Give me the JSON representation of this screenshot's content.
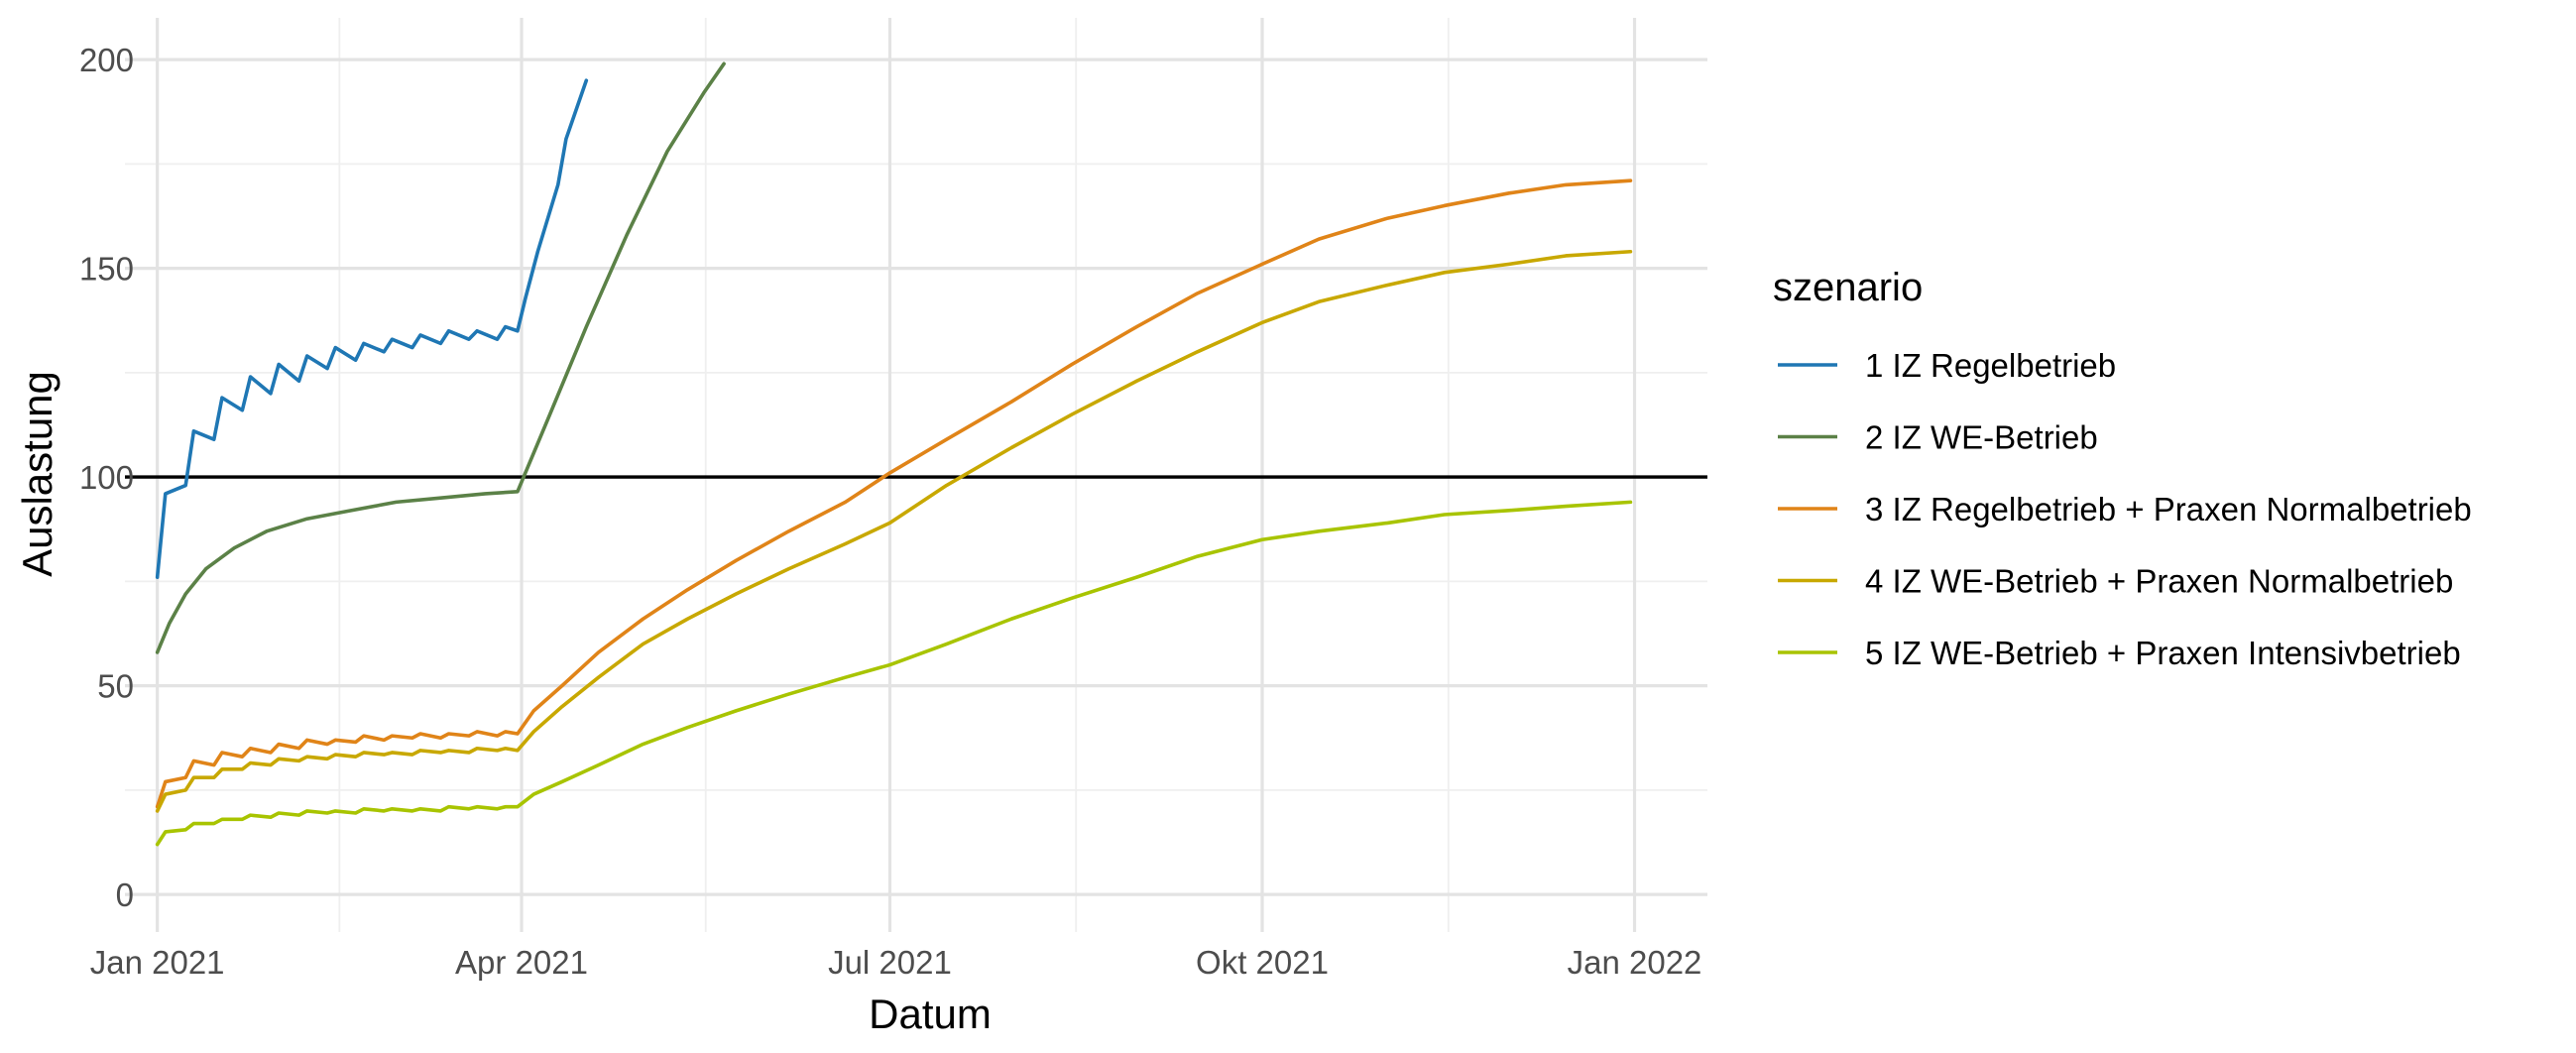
{
  "chart_data": {
    "type": "line",
    "xlabel": "Datum",
    "ylabel": "Auslastung",
    "x_ticks": [
      {
        "date": "2021-01-01",
        "label": "Jan 2021"
      },
      {
        "date": "2021-04-01",
        "label": "Apr 2021"
      },
      {
        "date": "2021-07-01",
        "label": "Jul 2021"
      },
      {
        "date": "2021-10-01",
        "label": "Okt 2021"
      },
      {
        "date": "2022-01-01",
        "label": "Jan 2022"
      }
    ],
    "y_ticks": [
      0,
      50,
      100,
      150,
      200
    ],
    "xlim": [
      "2020-12-24",
      "2022-01-19"
    ],
    "ylim": [
      -9,
      210
    ],
    "grid": true,
    "reference_line": {
      "y": 100,
      "color": "#000000"
    },
    "legend": {
      "title": "szenario",
      "position": "right"
    },
    "series": [
      {
        "name": "1 IZ Regelbetrieb",
        "color": "#1f77b4",
        "points": [
          [
            "2021-01-01",
            76
          ],
          [
            "2021-01-03",
            96
          ],
          [
            "2021-01-08",
            98
          ],
          [
            "2021-01-10",
            111
          ],
          [
            "2021-01-15",
            109
          ],
          [
            "2021-01-17",
            119
          ],
          [
            "2021-01-22",
            116
          ],
          [
            "2021-01-24",
            124
          ],
          [
            "2021-01-29",
            120
          ],
          [
            "2021-01-31",
            127
          ],
          [
            "2021-02-05",
            123
          ],
          [
            "2021-02-07",
            129
          ],
          [
            "2021-02-12",
            126
          ],
          [
            "2021-02-14",
            131
          ],
          [
            "2021-02-19",
            128
          ],
          [
            "2021-02-21",
            132
          ],
          [
            "2021-02-26",
            130
          ],
          [
            "2021-02-28",
            133
          ],
          [
            "2021-03-05",
            131
          ],
          [
            "2021-03-07",
            134
          ],
          [
            "2021-03-12",
            132
          ],
          [
            "2021-03-14",
            135
          ],
          [
            "2021-03-19",
            133
          ],
          [
            "2021-03-21",
            135
          ],
          [
            "2021-03-26",
            133
          ],
          [
            "2021-03-28",
            136
          ],
          [
            "2021-03-31",
            135
          ],
          [
            "2021-04-02",
            143
          ],
          [
            "2021-04-05",
            154
          ],
          [
            "2021-04-10",
            170
          ],
          [
            "2021-04-12",
            181
          ],
          [
            "2021-04-17",
            195
          ]
        ]
      },
      {
        "name": "2 IZ WE-Betrieb",
        "color": "#5b8147",
        "points": [
          [
            "2021-01-01",
            58
          ],
          [
            "2021-01-04",
            65
          ],
          [
            "2021-01-08",
            72
          ],
          [
            "2021-01-13",
            78
          ],
          [
            "2021-01-20",
            83
          ],
          [
            "2021-01-28",
            87
          ],
          [
            "2021-02-07",
            90
          ],
          [
            "2021-02-18",
            92
          ],
          [
            "2021-03-01",
            94
          ],
          [
            "2021-03-12",
            95
          ],
          [
            "2021-03-23",
            96
          ],
          [
            "2021-03-31",
            96.5
          ],
          [
            "2021-04-08",
            115
          ],
          [
            "2021-04-17",
            136
          ],
          [
            "2021-04-27",
            158
          ],
          [
            "2021-05-07",
            178
          ],
          [
            "2021-05-16",
            192
          ],
          [
            "2021-05-21",
            199
          ]
        ]
      },
      {
        "name": "3 IZ Regelbetrieb + Praxen Normalbetrieb",
        "color": "#e08418",
        "points": [
          [
            "2021-01-01",
            21
          ],
          [
            "2021-01-03",
            27
          ],
          [
            "2021-01-08",
            28
          ],
          [
            "2021-01-10",
            32
          ],
          [
            "2021-01-15",
            31
          ],
          [
            "2021-01-17",
            34
          ],
          [
            "2021-01-22",
            33
          ],
          [
            "2021-01-24",
            35
          ],
          [
            "2021-01-29",
            34
          ],
          [
            "2021-01-31",
            36
          ],
          [
            "2021-02-05",
            35
          ],
          [
            "2021-02-07",
            37
          ],
          [
            "2021-02-12",
            36
          ],
          [
            "2021-02-14",
            37
          ],
          [
            "2021-02-19",
            36.5
          ],
          [
            "2021-02-21",
            38
          ],
          [
            "2021-02-26",
            37
          ],
          [
            "2021-02-28",
            38
          ],
          [
            "2021-03-05",
            37.5
          ],
          [
            "2021-03-07",
            38.5
          ],
          [
            "2021-03-12",
            37.5
          ],
          [
            "2021-03-14",
            38.5
          ],
          [
            "2021-03-19",
            38
          ],
          [
            "2021-03-21",
            39
          ],
          [
            "2021-03-26",
            38
          ],
          [
            "2021-03-28",
            39
          ],
          [
            "2021-03-31",
            38.5
          ],
          [
            "2021-04-04",
            44
          ],
          [
            "2021-04-11",
            50
          ],
          [
            "2021-04-20",
            58
          ],
          [
            "2021-05-01",
            66
          ],
          [
            "2021-05-12",
            73
          ],
          [
            "2021-05-24",
            80
          ],
          [
            "2021-06-06",
            87
          ],
          [
            "2021-06-20",
            94
          ],
          [
            "2021-07-01",
            101
          ],
          [
            "2021-07-15",
            109
          ],
          [
            "2021-07-31",
            118
          ],
          [
            "2021-08-15",
            127
          ],
          [
            "2021-08-31",
            136
          ],
          [
            "2021-09-15",
            144
          ],
          [
            "2021-10-01",
            151
          ],
          [
            "2021-10-15",
            157
          ],
          [
            "2021-11-01",
            162
          ],
          [
            "2021-11-15",
            165
          ],
          [
            "2021-12-01",
            168
          ],
          [
            "2021-12-15",
            170
          ],
          [
            "2021-12-31",
            171
          ]
        ]
      },
      {
        "name": "4 IZ WE-Betrieb + Praxen Normalbetrieb",
        "color": "#c8a800",
        "points": [
          [
            "2021-01-01",
            20
          ],
          [
            "2021-01-03",
            24
          ],
          [
            "2021-01-08",
            25
          ],
          [
            "2021-01-10",
            28
          ],
          [
            "2021-01-15",
            28
          ],
          [
            "2021-01-17",
            30
          ],
          [
            "2021-01-22",
            30
          ],
          [
            "2021-01-24",
            31.5
          ],
          [
            "2021-01-29",
            31
          ],
          [
            "2021-01-31",
            32.5
          ],
          [
            "2021-02-05",
            32
          ],
          [
            "2021-02-07",
            33
          ],
          [
            "2021-02-12",
            32.5
          ],
          [
            "2021-02-14",
            33.5
          ],
          [
            "2021-02-19",
            33
          ],
          [
            "2021-02-21",
            34
          ],
          [
            "2021-02-26",
            33.5
          ],
          [
            "2021-02-28",
            34
          ],
          [
            "2021-03-05",
            33.5
          ],
          [
            "2021-03-07",
            34.5
          ],
          [
            "2021-03-12",
            34
          ],
          [
            "2021-03-14",
            34.5
          ],
          [
            "2021-03-19",
            34
          ],
          [
            "2021-03-21",
            35
          ],
          [
            "2021-03-26",
            34.5
          ],
          [
            "2021-03-28",
            35
          ],
          [
            "2021-03-31",
            34.5
          ],
          [
            "2021-04-04",
            39
          ],
          [
            "2021-04-11",
            45
          ],
          [
            "2021-04-20",
            52
          ],
          [
            "2021-05-01",
            60
          ],
          [
            "2021-05-12",
            66
          ],
          [
            "2021-05-24",
            72
          ],
          [
            "2021-06-06",
            78
          ],
          [
            "2021-06-20",
            84
          ],
          [
            "2021-07-01",
            89
          ],
          [
            "2021-07-15",
            98
          ],
          [
            "2021-07-31",
            107
          ],
          [
            "2021-08-15",
            115
          ],
          [
            "2021-08-31",
            123
          ],
          [
            "2021-09-15",
            130
          ],
          [
            "2021-10-01",
            137
          ],
          [
            "2021-10-15",
            142
          ],
          [
            "2021-11-01",
            146
          ],
          [
            "2021-11-15",
            149
          ],
          [
            "2021-12-01",
            151
          ],
          [
            "2021-12-15",
            153
          ],
          [
            "2021-12-31",
            154
          ]
        ]
      },
      {
        "name": "5 IZ WE-Betrieb + Praxen Intensivbetrieb",
        "color": "#a8c400",
        "points": [
          [
            "2021-01-01",
            12
          ],
          [
            "2021-01-03",
            15
          ],
          [
            "2021-01-08",
            15.5
          ],
          [
            "2021-01-10",
            17
          ],
          [
            "2021-01-15",
            17
          ],
          [
            "2021-01-17",
            18
          ],
          [
            "2021-01-22",
            18
          ],
          [
            "2021-01-24",
            19
          ],
          [
            "2021-01-29",
            18.5
          ],
          [
            "2021-01-31",
            19.5
          ],
          [
            "2021-02-05",
            19
          ],
          [
            "2021-02-07",
            20
          ],
          [
            "2021-02-12",
            19.5
          ],
          [
            "2021-02-14",
            20
          ],
          [
            "2021-02-19",
            19.5
          ],
          [
            "2021-02-21",
            20.5
          ],
          [
            "2021-02-26",
            20
          ],
          [
            "2021-02-28",
            20.5
          ],
          [
            "2021-03-05",
            20
          ],
          [
            "2021-03-07",
            20.5
          ],
          [
            "2021-03-12",
            20
          ],
          [
            "2021-03-14",
            21
          ],
          [
            "2021-03-19",
            20.5
          ],
          [
            "2021-03-21",
            21
          ],
          [
            "2021-03-26",
            20.5
          ],
          [
            "2021-03-28",
            21
          ],
          [
            "2021-03-31",
            21
          ],
          [
            "2021-04-04",
            24
          ],
          [
            "2021-04-11",
            27
          ],
          [
            "2021-04-20",
            31
          ],
          [
            "2021-05-01",
            36
          ],
          [
            "2021-05-12",
            40
          ],
          [
            "2021-05-24",
            44
          ],
          [
            "2021-06-06",
            48
          ],
          [
            "2021-06-20",
            52
          ],
          [
            "2021-07-01",
            55
          ],
          [
            "2021-07-15",
            60
          ],
          [
            "2021-07-31",
            66
          ],
          [
            "2021-08-15",
            71
          ],
          [
            "2021-08-31",
            76
          ],
          [
            "2021-09-15",
            81
          ],
          [
            "2021-10-01",
            85
          ],
          [
            "2021-10-15",
            87
          ],
          [
            "2021-11-01",
            89
          ],
          [
            "2021-11-15",
            91
          ],
          [
            "2021-12-01",
            92
          ],
          [
            "2021-12-15",
            93
          ],
          [
            "2021-12-31",
            94
          ]
        ]
      }
    ]
  }
}
